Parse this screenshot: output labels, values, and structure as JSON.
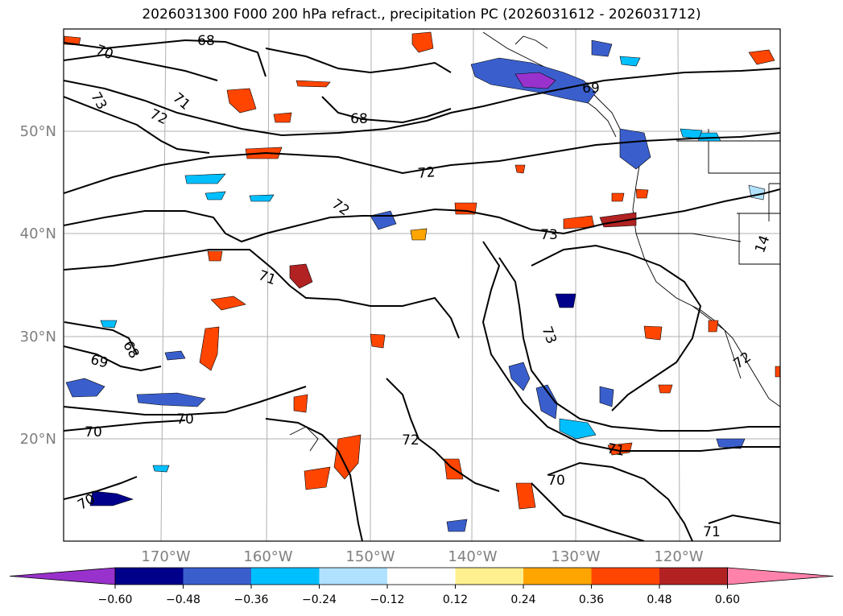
{
  "title": "2026031300 F000 200 hPa refract., precipitation PC (2026031612 - 2026031712)",
  "lat_labels": [
    "50°N",
    "40°N",
    "30°N",
    "20°N"
  ],
  "lon_labels": [
    "170°W",
    "160°W",
    "150°W",
    "140°W",
    "130°W",
    "120°W"
  ],
  "contour_labels": [
    "68",
    "70",
    "73",
    "71",
    "72",
    "68",
    "69",
    "72",
    "72",
    "73",
    "14",
    "71",
    "68",
    "69",
    "70",
    "70",
    "72",
    "73",
    "71",
    "70",
    "70",
    "71",
    "72"
  ],
  "colorbar": {
    "ticks": [
      "−0.60",
      "−0.48",
      "−0.36",
      "−0.24",
      "−0.12",
      "0.12",
      "0.24",
      "0.36",
      "0.48",
      "0.60"
    ],
    "colors": [
      "#9932cc",
      "#00008b",
      "#3a5fcd",
      "#00bfff",
      "#b0e2ff",
      "#ffffff",
      "#fff08f",
      "#ffa500",
      "#ff4500",
      "#b22222",
      "#ff82ab"
    ]
  }
}
